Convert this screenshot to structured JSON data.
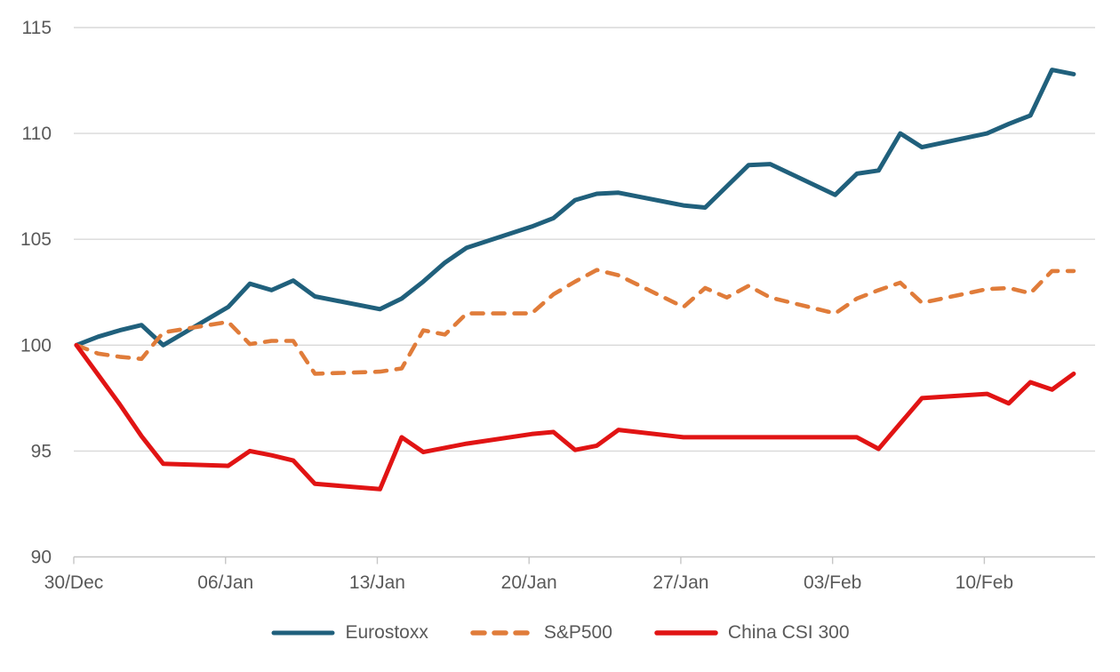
{
  "chart_data": {
    "type": "line",
    "title": "",
    "xlabel": "",
    "ylabel": "",
    "ylim": [
      90,
      115
    ],
    "y_ticks": [
      90,
      95,
      100,
      105,
      110,
      115
    ],
    "grid": "horizontal",
    "legend_position": "bottom",
    "x_tick_labels": [
      "30/Dec",
      "06/Jan",
      "13/Jan",
      "20/Jan",
      "27/Jan",
      "03/Feb",
      "10/Feb"
    ],
    "x_tick_day_offsets": [
      0,
      7,
      14,
      21,
      28,
      35,
      42
    ],
    "dates": [
      "30/Dec",
      "31/Dec",
      "01/Jan",
      "02/Jan",
      "03/Jan",
      "06/Jan",
      "07/Jan",
      "08/Jan",
      "09/Jan",
      "10/Jan",
      "13/Jan",
      "14/Jan",
      "15/Jan",
      "16/Jan",
      "17/Jan",
      "20/Jan",
      "21/Jan",
      "22/Jan",
      "23/Jan",
      "24/Jan",
      "27/Jan",
      "28/Jan",
      "29/Jan",
      "30/Jan",
      "31/Jan",
      "03/Feb",
      "04/Feb",
      "05/Feb",
      "06/Feb",
      "07/Feb",
      "10/Feb",
      "11/Feb",
      "12/Feb",
      "13/Feb",
      "14/Feb"
    ],
    "day_offsets": [
      0,
      1,
      2,
      3,
      4,
      7,
      8,
      9,
      10,
      11,
      14,
      15,
      16,
      17,
      18,
      21,
      22,
      23,
      24,
      25,
      28,
      29,
      30,
      31,
      32,
      35,
      36,
      37,
      38,
      39,
      42,
      43,
      44,
      45,
      46
    ],
    "base_value": 100,
    "series": [
      {
        "name": "Eurostoxx",
        "color": "#20607C",
        "style": "solid",
        "values": [
          100,
          100.4,
          100.7,
          100.95,
          100,
          101.8,
          102.9,
          102.6,
          103.05,
          102.3,
          101.7,
          102.2,
          103,
          103.9,
          104.6,
          105.6,
          106,
          106.85,
          107.15,
          107.2,
          106.6,
          106.5,
          107.5,
          108.5,
          108.55,
          107.1,
          108.1,
          108.25,
          110,
          109.35,
          110,
          110.45,
          110.85,
          113,
          112.8
        ]
      },
      {
        "name": "S&P500",
        "color": "#E07C3A",
        "style": "dashed",
        "values": [
          100,
          99.6,
          99.45,
          99.35,
          100.6,
          101.1,
          100.05,
          100.2,
          100.2,
          98.65,
          98.75,
          98.9,
          100.7,
          100.5,
          101.5,
          101.5,
          102.4,
          103,
          103.55,
          103.3,
          101.8,
          102.7,
          102.25,
          102.8,
          102.25,
          101.5,
          102.2,
          102.6,
          102.95,
          102,
          102.65,
          102.7,
          102.45,
          103.5,
          103.5
        ]
      },
      {
        "name": "China CSI 300",
        "color": "#E11414",
        "style": "solid",
        "values": [
          100,
          98.6,
          97.2,
          95.7,
          94.4,
          94.3,
          95,
          94.8,
          94.55,
          93.45,
          93.2,
          95.65,
          94.95,
          95.15,
          95.35,
          95.8,
          95.9,
          95.05,
          95.25,
          96,
          95.65,
          95.65,
          95.65,
          95.65,
          95.65,
          95.65,
          95.65,
          95.1,
          96.3,
          97.5,
          97.7,
          97.25,
          98.25,
          97.9,
          98.65
        ]
      }
    ]
  },
  "colors": {
    "gridline": "#D9D9D9",
    "axis_line": "#C6C6C6",
    "tick_mark": "#C6C6C6",
    "label_text": "#595959",
    "background": "#FFFFFF"
  },
  "legend": {
    "items": [
      {
        "label": "Eurostoxx"
      },
      {
        "label": "S&P500"
      },
      {
        "label": "China CSI 300"
      }
    ]
  }
}
